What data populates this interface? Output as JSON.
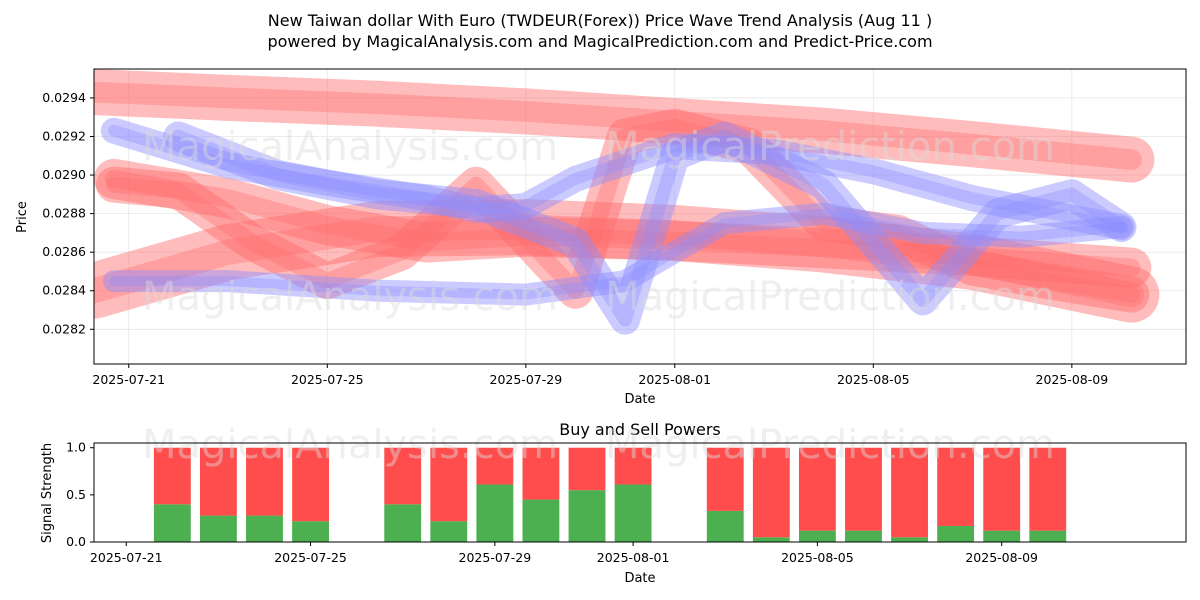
{
  "title_line1": "New Taiwan dollar With Euro (TWDEUR(Forex)) Price Wave Trend Analysis (Aug 11 )",
  "title_line2": "powered by MagicalAnalysis.com and MagicalPrediction.com and Predict-Price.com",
  "watermarks": [
    "MagicalAnalysis.com",
    "MagicalPrediction.com"
  ],
  "colors": {
    "buy": "#4caf50",
    "sell": "#ff4d4d",
    "red_band": "#ff6b6b",
    "blue_band": "#8c8cff"
  },
  "chart_data": [
    {
      "type": "line",
      "title": "",
      "xlabel": "Date",
      "ylabel": "Price",
      "xlim": [
        -0.7,
        21.3
      ],
      "ylim": [
        0.02802,
        0.02955
      ],
      "xticks": [
        {
          "day": 0,
          "label": "2025-07-21"
        },
        {
          "day": 4,
          "label": "2025-07-25"
        },
        {
          "day": 8,
          "label": "2025-07-29"
        },
        {
          "day": 11,
          "label": "2025-08-01"
        },
        {
          "day": 15,
          "label": "2025-08-05"
        },
        {
          "day": 19,
          "label": "2025-08-09"
        }
      ],
      "yticks": [
        0.0282,
        0.0284,
        0.0286,
        0.0288,
        0.029,
        0.0292,
        0.0294
      ],
      "grid": true,
      "series": [
        {
          "name": "red-upper",
          "color": "red",
          "x": [
            -0.7,
            2,
            5,
            8,
            11,
            14,
            17,
            20.2
          ],
          "y": [
            0.02943,
            0.0294,
            0.02937,
            0.02933,
            0.02928,
            0.02923,
            0.02916,
            0.02908
          ]
        },
        {
          "name": "red-middle",
          "color": "red",
          "x": [
            -0.3,
            2,
            4,
            6,
            8,
            11,
            14,
            17,
            20.2
          ],
          "y": [
            0.02898,
            0.02888,
            0.02874,
            0.02865,
            0.02868,
            0.02866,
            0.02862,
            0.02858,
            0.02852
          ]
        },
        {
          "name": "red-lower",
          "color": "red",
          "x": [
            -0.7,
            2,
            5,
            8,
            11,
            14,
            17,
            20.2
          ],
          "y": [
            0.0284,
            0.0286,
            0.02872,
            0.02873,
            0.0287,
            0.02864,
            0.02855,
            0.02838
          ]
        },
        {
          "name": "red-zigzag",
          "color": "red",
          "x": [
            -0.3,
            1,
            2.5,
            4,
            5.5,
            7,
            9,
            10,
            11,
            12.5,
            14,
            15.5,
            17,
            18.5,
            20.2
          ],
          "y": [
            0.02895,
            0.02892,
            0.02865,
            0.02845,
            0.0286,
            0.02895,
            0.0284,
            0.0292,
            0.02925,
            0.02915,
            0.02875,
            0.0287,
            0.02852,
            0.02845,
            0.02838
          ]
        },
        {
          "name": "blue-upper",
          "color": "blue",
          "x": [
            -0.3,
            2,
            4,
            6,
            7,
            8,
            9,
            11,
            13,
            15,
            17,
            19,
            20
          ],
          " y": [
            0.02923,
            0.02905,
            0.02896,
            0.02888,
            0.02882,
            0.02884,
            0.02898,
            0.02915,
            0.02912,
            0.02902,
            0.02888,
            0.02878,
            0.02873
          ]
        },
        {
          "name": "blue-lower",
          "color": "blue",
          "x": [
            -0.3,
            2,
            5,
            8,
            10,
            12,
            14,
            16,
            18,
            20
          ],
          "y": [
            0.02845,
            0.02845,
            0.0284,
            0.02838,
            0.02845,
            0.02875,
            0.0288,
            0.0287,
            0.02868,
            0.02873
          ]
        },
        {
          "name": "blue-zigzag",
          "color": "blue",
          "x": [
            1,
            3,
            5,
            7,
            9,
            10,
            11,
            12,
            14,
            16,
            17.5,
            19,
            20
          ],
          "y": [
            0.0292,
            0.029,
            0.0289,
            0.02885,
            0.02865,
            0.02825,
            0.0291,
            0.0292,
            0.02895,
            0.02835,
            0.0288,
            0.0289,
            0.02873
          ]
        }
      ]
    },
    {
      "type": "bar",
      "title": "Buy and Sell Powers",
      "xlabel": "Date",
      "ylabel": "Signal Strength",
      "xlim": [
        -1.7,
        22.0
      ],
      "ylim": [
        0,
        1.05
      ],
      "xticks": [
        {
          "day": -1,
          "label": "2025-07-21"
        },
        {
          "day": 3,
          "label": "2025-07-25"
        },
        {
          "day": 7,
          "label": "2025-07-29"
        },
        {
          "day": 10,
          "label": "2025-08-01"
        },
        {
          "day": 14,
          "label": "2025-08-05"
        },
        {
          "day": 18,
          "label": "2025-08-09"
        }
      ],
      "yticks": [
        0.0,
        0.5,
        1.0
      ],
      "categories": [
        "2025-07-22",
        "2025-07-23",
        "2025-07-24",
        "2025-07-25",
        "2025-07-27",
        "2025-07-28",
        "2025-07-29",
        "2025-07-30",
        "2025-07-31",
        "2025-08-01",
        "2025-08-03",
        "2025-08-04",
        "2025-08-05",
        "2025-08-06",
        "2025-08-07",
        "2025-08-08",
        "2025-08-09",
        "2025-08-10"
      ],
      "days": [
        0,
        1,
        2,
        3,
        5,
        6,
        7,
        8,
        9,
        10,
        12,
        13,
        14,
        15,
        16,
        17,
        18,
        19
      ],
      "buy": [
        0.4,
        0.28,
        0.28,
        0.22,
        0.4,
        0.22,
        0.61,
        0.45,
        0.55,
        0.61,
        0.33,
        0.05,
        0.12,
        0.12,
        0.05,
        0.17,
        0.12,
        0.12
      ],
      "sell": [
        0.6,
        0.72,
        0.72,
        0.78,
        0.6,
        0.78,
        0.39,
        0.55,
        0.45,
        0.39,
        0.67,
        0.95,
        0.88,
        0.88,
        0.95,
        0.83,
        0.88,
        0.88
      ]
    }
  ]
}
